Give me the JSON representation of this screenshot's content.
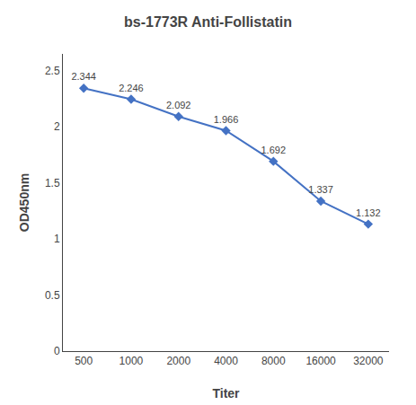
{
  "chart_data": {
    "type": "line",
    "title": "bs-1773R Anti-Follistatin",
    "x_label": "Titer",
    "y_label": "OD450nm",
    "categories": [
      "500",
      "1000",
      "2000",
      "4000",
      "8000",
      "16000",
      "32000"
    ],
    "values": [
      2.344,
      2.246,
      2.092,
      1.966,
      1.692,
      1.337,
      1.132
    ],
    "color": "#4472C4",
    "marker": "diamond",
    "line_style": "solid",
    "data_labels": true,
    "ylim": [
      0,
      2.65
    ],
    "yticks": [
      0,
      0.5,
      1,
      1.5,
      2,
      2.5
    ],
    "grid": false
  }
}
